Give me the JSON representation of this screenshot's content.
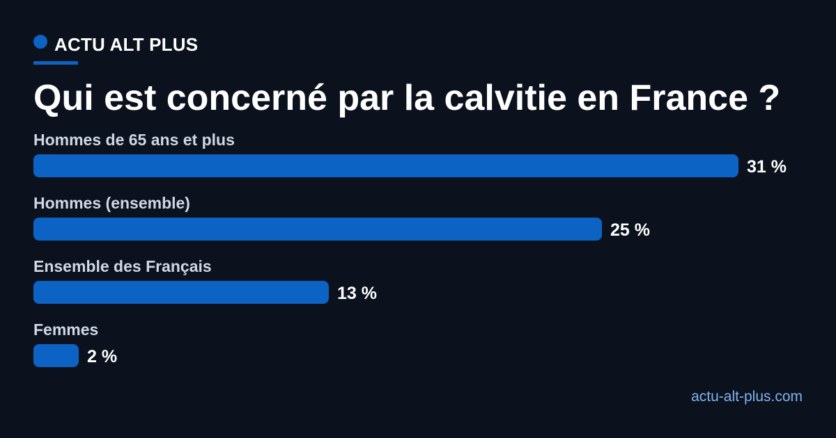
{
  "brand": {
    "name": "ACTU ALT PLUS"
  },
  "header": {
    "title": "Qui est concerné par la calvitie en France ?"
  },
  "footer": {
    "url": "actu-alt-plus.com"
  },
  "colors": {
    "background": "#0b121e",
    "accent": "#0c63c4",
    "label": "#cfd8e6",
    "link": "#7fb2ee"
  },
  "chart_data": {
    "type": "bar",
    "orientation": "horizontal",
    "title": "Qui est concerné par la calvitie en France ?",
    "categories": [
      "Hommes de 65 ans et plus",
      "Hommes (ensemble)",
      "Ensemble des Français",
      "Femmes"
    ],
    "values": [
      31,
      25,
      13,
      2
    ],
    "value_labels": [
      "31 %",
      "25 %",
      "13 %",
      "2 %"
    ],
    "unit": "%",
    "xlim": [
      0,
      34
    ],
    "grid": false,
    "legend": "none"
  }
}
